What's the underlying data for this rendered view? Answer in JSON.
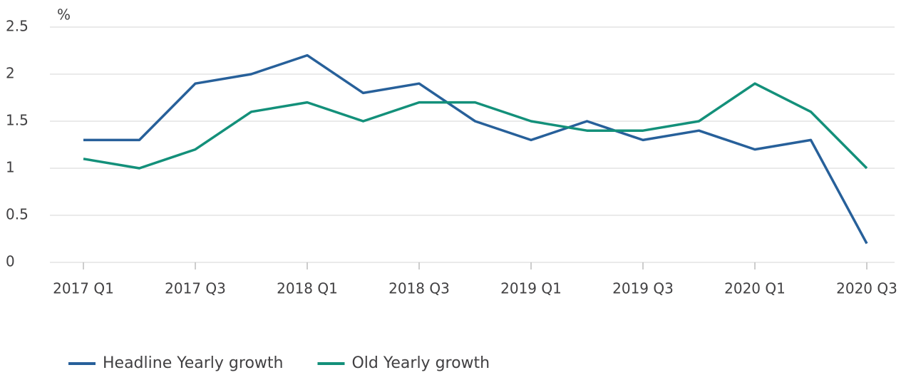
{
  "chart_data": {
    "type": "line",
    "y_label": "%",
    "categories": [
      "2017 Q1",
      null,
      "2017 Q3",
      null,
      "2018 Q1",
      null,
      "2018 Q3",
      null,
      "2019 Q1",
      null,
      "2019 Q3",
      null,
      "2020 Q1",
      null,
      "2020 Q3"
    ],
    "series": [
      {
        "name": "Headline Yearly growth",
        "color": "#27609a",
        "values": [
          1.3,
          1.3,
          1.9,
          2.0,
          2.2,
          1.8,
          1.9,
          1.5,
          1.3,
          1.5,
          1.3,
          1.4,
          1.2,
          1.3,
          0.2
        ]
      },
      {
        "name": "Old Yearly growth",
        "color": "#13907a",
        "values": [
          1.1,
          1.0,
          1.2,
          1.6,
          1.7,
          1.5,
          1.7,
          1.7,
          1.5,
          1.4,
          1.4,
          1.5,
          1.9,
          1.6,
          1.0
        ]
      }
    ],
    "ylim": [
      0,
      2.5
    ],
    "yticks": [
      0,
      0.5,
      1,
      1.5,
      2,
      2.5
    ],
    "grid": true,
    "legend": "bottom-left"
  }
}
